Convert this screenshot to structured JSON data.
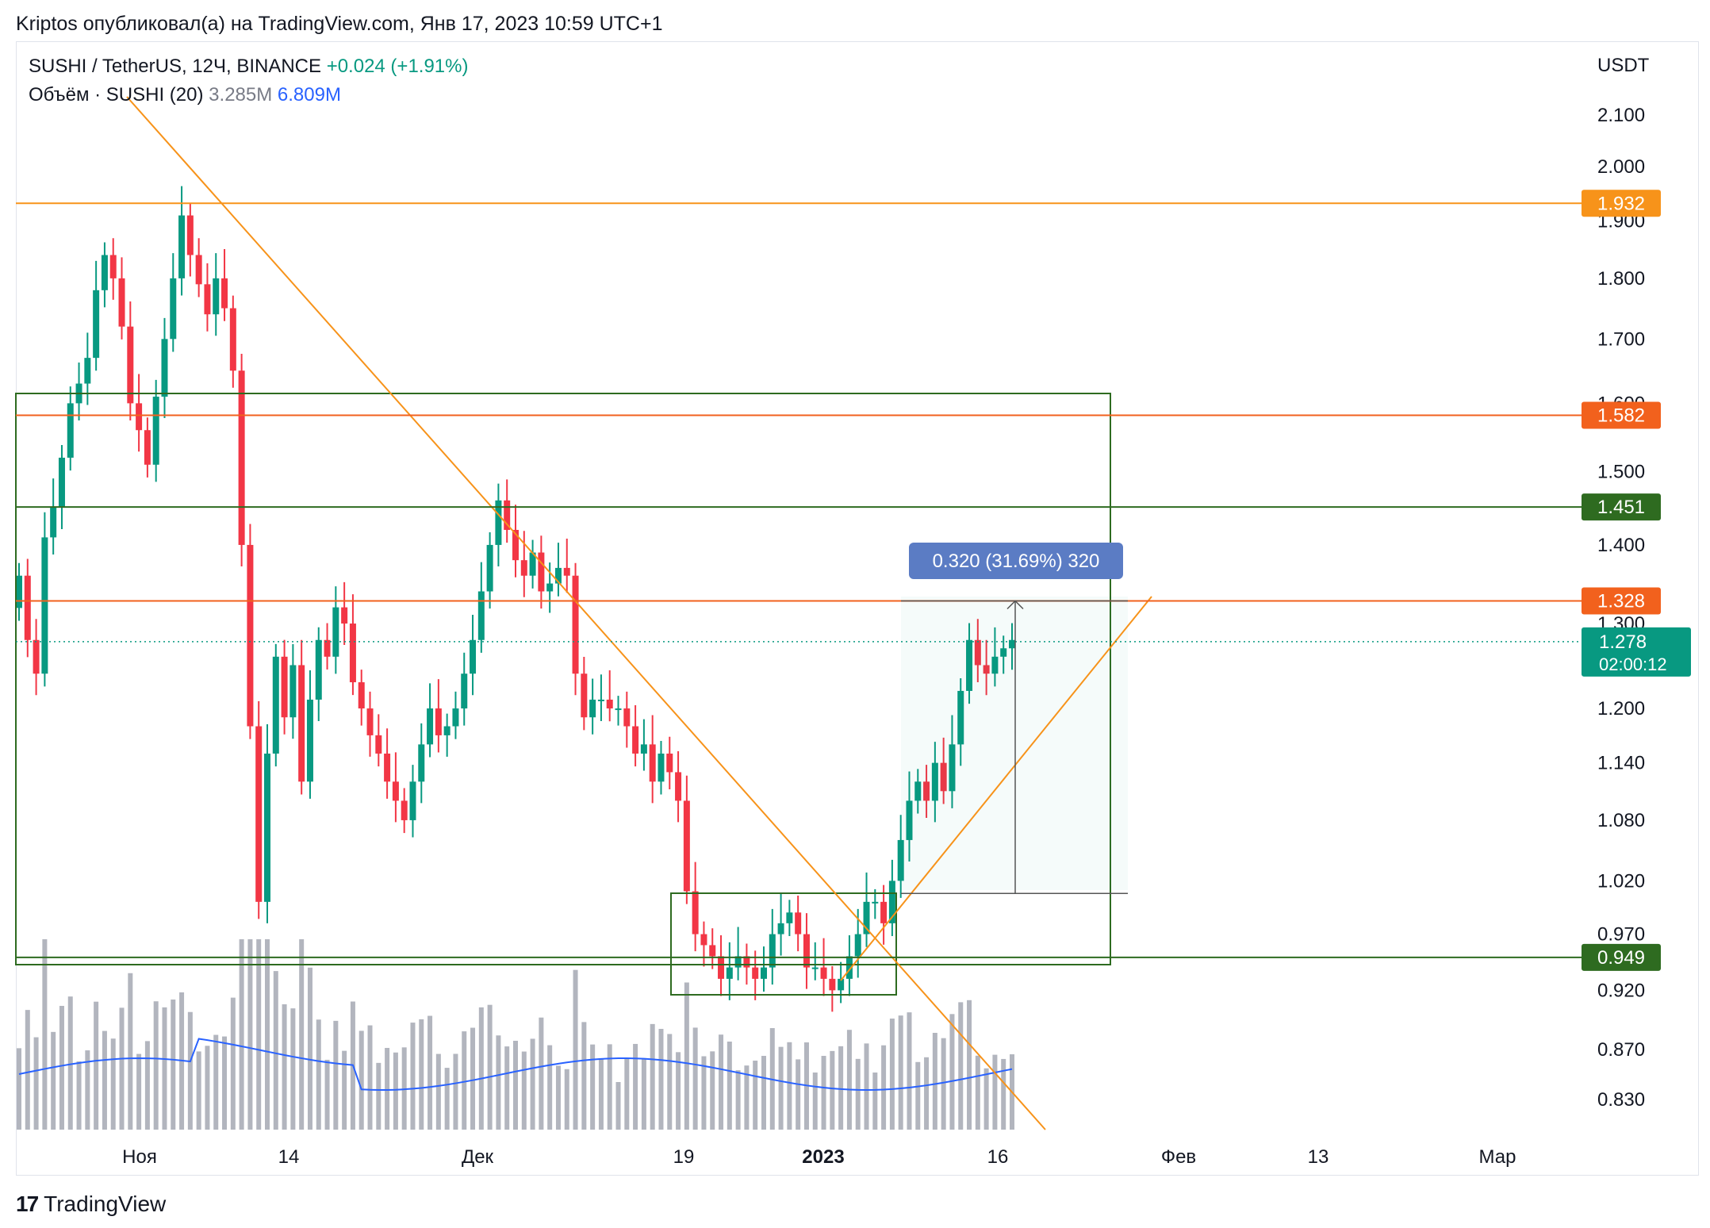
{
  "publication": "Kriptos опубликовал(а) на TradingView.com, Янв 17, 2023 10:59 UTC+1",
  "legend": {
    "symbol": "SUSHI / TetherUS, 12Ч, BINANCE",
    "change": "+0.024 (+1.91%)",
    "volume_label": "Объём · SUSHI (20)",
    "volume_value": "3.285M",
    "volume_ma": "6.809M"
  },
  "brand": "TradingView",
  "colors": {
    "up": "#089981",
    "down": "#f23645",
    "vol": "#b2b5be",
    "vol_ma": "#2962ff",
    "orange": "#f7931a",
    "orange_red": "#f2611d",
    "green_line": "#2e6b20"
  },
  "chart_data": {
    "type": "candlestick",
    "currency": "USDT",
    "y_ticks": [
      "2.100",
      "2.000",
      "1.900",
      "1.800",
      "1.700",
      "1.600",
      "1.500",
      "1.400",
      "1.300",
      "1.200",
      "1.140",
      "1.080",
      "1.020",
      "0.970",
      "0.920",
      "0.870",
      "0.830"
    ],
    "x_ticks": [
      "Ноя",
      "14",
      "Дек",
      "19",
      "2023",
      "16",
      "Фев",
      "13",
      "Мар"
    ],
    "ylim": [
      0.8,
      2.15
    ],
    "price_scale": "log",
    "horizontal_lines": [
      {
        "value": 1.932,
        "label": "1.932",
        "color": "#f7931a"
      },
      {
        "value": 1.582,
        "label": "1.582",
        "color": "#f2611d"
      },
      {
        "value": 1.451,
        "label": "1.451",
        "color": "#2e6b20"
      },
      {
        "value": 1.328,
        "label": "1.328",
        "color": "#f2611d"
      },
      {
        "value": 0.949,
        "label": "0.949",
        "color": "#2e6b20"
      }
    ],
    "last_price": {
      "value": 1.278,
      "label": "1.278",
      "countdown": "02:00:12"
    },
    "measure_tool": {
      "label": "0.320 (31.69%) 320",
      "from": 1.008,
      "to": 1.328
    },
    "closes": [
      1.36,
      1.28,
      1.24,
      1.41,
      1.45,
      1.52,
      1.6,
      1.63,
      1.67,
      1.78,
      1.84,
      1.8,
      1.72,
      1.6,
      1.56,
      1.51,
      1.61,
      1.7,
      1.8,
      1.91,
      1.84,
      1.79,
      1.74,
      1.8,
      1.75,
      1.65,
      1.4,
      1.18,
      1.0,
      1.15,
      1.26,
      1.19,
      1.25,
      1.12,
      1.21,
      1.28,
      1.26,
      1.32,
      1.3,
      1.23,
      1.2,
      1.17,
      1.15,
      1.12,
      1.1,
      1.08,
      1.12,
      1.16,
      1.2,
      1.17,
      1.18,
      1.2,
      1.24,
      1.28,
      1.34,
      1.4,
      1.46,
      1.42,
      1.38,
      1.36,
      1.39,
      1.34,
      1.35,
      1.37,
      1.36,
      1.24,
      1.19,
      1.21,
      1.21,
      1.2,
      1.2,
      1.18,
      1.15,
      1.16,
      1.12,
      1.15,
      1.13,
      1.1,
      1.01,
      0.97,
      0.96,
      0.95,
      0.93,
      0.94,
      0.95,
      0.94,
      0.93,
      0.94,
      0.97,
      0.98,
      0.99,
      0.97,
      0.94,
      0.94,
      0.93,
      0.92,
      0.93,
      0.95,
      0.97,
      1.0,
      1.0,
      0.98,
      1.02,
      1.06,
      1.1,
      1.12,
      1.1,
      1.14,
      1.11,
      1.16,
      1.22,
      1.28,
      1.25,
      1.24,
      1.26,
      1.27,
      1.28
    ],
    "volume_ma_label": "6.809M"
  }
}
